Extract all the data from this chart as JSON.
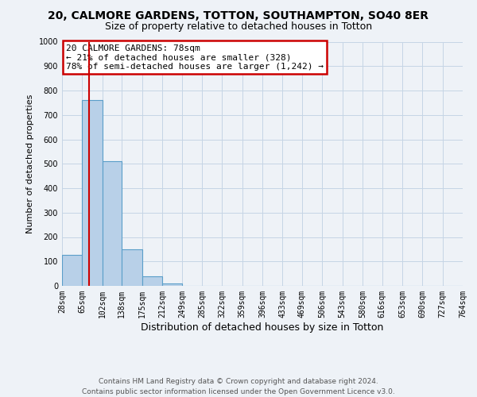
{
  "title": "20, CALMORE GARDENS, TOTTON, SOUTHAMPTON, SO40 8ER",
  "subtitle": "Size of property relative to detached houses in Totton",
  "xlabel": "Distribution of detached houses by size in Totton",
  "ylabel": "Number of detached properties",
  "footer_line1": "Contains HM Land Registry data © Crown copyright and database right 2024.",
  "footer_line2": "Contains public sector information licensed under the Open Government Licence v3.0.",
  "bin_labels": [
    "28sqm",
    "65sqm",
    "102sqm",
    "138sqm",
    "175sqm",
    "212sqm",
    "249sqm",
    "285sqm",
    "322sqm",
    "359sqm",
    "396sqm",
    "433sqm",
    "469sqm",
    "506sqm",
    "543sqm",
    "580sqm",
    "616sqm",
    "653sqm",
    "690sqm",
    "727sqm",
    "764sqm"
  ],
  "bar_values": [
    128,
    760,
    510,
    150,
    40,
    10,
    0,
    0,
    0,
    0,
    0,
    0,
    0,
    0,
    0,
    0,
    0,
    0,
    0,
    0
  ],
  "bar_color": "#b8d0e8",
  "bar_edge_color": "#5a9ec9",
  "annotation_title": "20 CALMORE GARDENS: 78sqm",
  "annotation_line1": "← 21% of detached houses are smaller (328)",
  "annotation_line2": "78% of semi-detached houses are larger (1,242) →",
  "ylim": [
    0,
    1000
  ],
  "yticks": [
    0,
    100,
    200,
    300,
    400,
    500,
    600,
    700,
    800,
    900,
    1000
  ],
  "bin_edges_sqm": [
    28,
    65,
    102,
    138,
    175,
    212,
    249,
    285,
    322,
    359,
    396,
    433,
    469,
    506,
    543,
    580,
    616,
    653,
    690,
    727,
    764
  ],
  "property_sqm": 78,
  "bg_color": "#eef2f7",
  "grid_color": "#c5d5e5",
  "annotation_box_color": "#ffffff",
  "annotation_box_edge_color": "#cc0000",
  "ref_line_color": "#cc0000",
  "title_fontsize": 10,
  "subtitle_fontsize": 9,
  "ylabel_fontsize": 8,
  "xlabel_fontsize": 9,
  "tick_fontsize": 7,
  "annotation_fontsize": 8,
  "footer_fontsize": 6.5
}
